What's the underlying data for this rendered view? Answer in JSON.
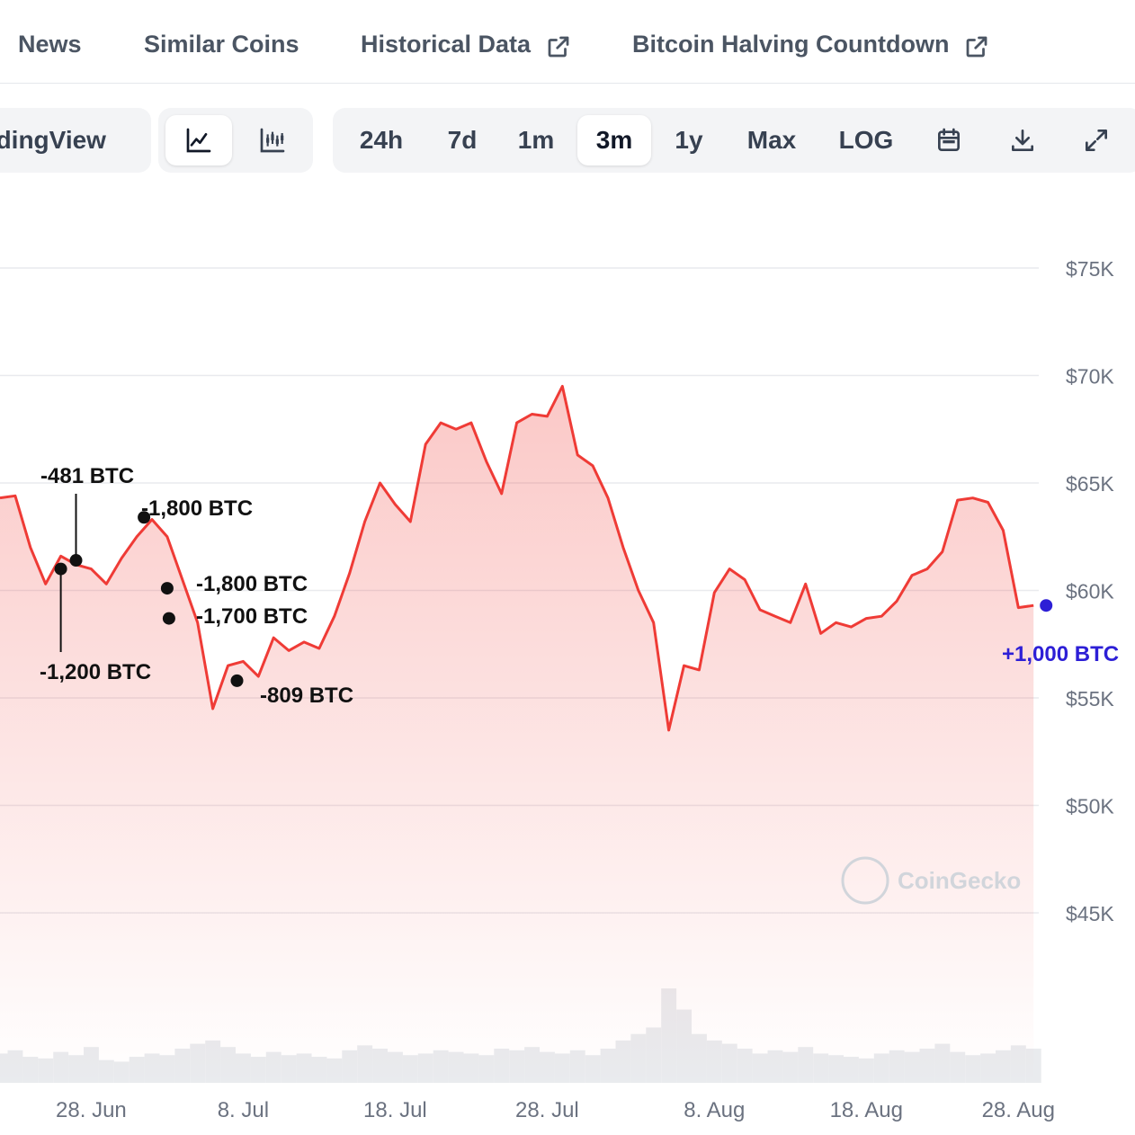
{
  "nav": {
    "items": [
      {
        "label": "News",
        "external": false
      },
      {
        "label": "Similar Coins",
        "external": false
      },
      {
        "label": "Historical Data",
        "external": true
      },
      {
        "label": "Bitcoin Halving Countdown",
        "external": true
      }
    ]
  },
  "toolbar": {
    "tradingview_label": "adingView",
    "chart_types": [
      {
        "icon": "line-chart-icon",
        "active": true
      },
      {
        "icon": "candlestick-chart-icon",
        "active": false
      }
    ],
    "ranges": [
      "24h",
      "7d",
      "1m",
      "3m",
      "1y",
      "Max",
      "LOG"
    ],
    "active_range": "3m",
    "tools": [
      "calendar-icon",
      "download-icon",
      "fullscreen-icon"
    ]
  },
  "watermark": "CoinGecko",
  "colors": {
    "line": "#ef3b36",
    "marker": "#111111",
    "highlight_marker": "#2d1fd6",
    "volume": "#e5e7eb"
  },
  "chart_data": {
    "type": "line",
    "title": "",
    "xlabel": "",
    "ylabel": "",
    "x_ticks": [
      "28. Jun",
      "8. Jul",
      "18. Jul",
      "28. Jul",
      "8. Aug",
      "18. Aug",
      "28. Aug"
    ],
    "y_ticks": [
      "$45K",
      "$50K",
      "$55K",
      "$60K",
      "$65K",
      "$70K",
      "$75K"
    ],
    "ylim": [
      45000,
      75000
    ],
    "grid": true,
    "series": [
      {
        "x": [
          "2024-06-22",
          "2024-06-23",
          "2024-06-24",
          "2024-06-25",
          "2024-06-26",
          "2024-06-27",
          "2024-06-28",
          "2024-06-29",
          "2024-06-30",
          "2024-07-01",
          "2024-07-02",
          "2024-07-03",
          "2024-07-04",
          "2024-07-05",
          "2024-07-06",
          "2024-07-07",
          "2024-07-08",
          "2024-07-09",
          "2024-07-10",
          "2024-07-11",
          "2024-07-12",
          "2024-07-13",
          "2024-07-14",
          "2024-07-15",
          "2024-07-16",
          "2024-07-17",
          "2024-07-18",
          "2024-07-19",
          "2024-07-20",
          "2024-07-21",
          "2024-07-22",
          "2024-07-23",
          "2024-07-24",
          "2024-07-25",
          "2024-07-26",
          "2024-07-27",
          "2024-07-28",
          "2024-07-29",
          "2024-07-30",
          "2024-07-31",
          "2024-08-01",
          "2024-08-02",
          "2024-08-03",
          "2024-08-04",
          "2024-08-05",
          "2024-08-06",
          "2024-08-07",
          "2024-08-08",
          "2024-08-09",
          "2024-08-10",
          "2024-08-11",
          "2024-08-12",
          "2024-08-13",
          "2024-08-14",
          "2024-08-15",
          "2024-08-16",
          "2024-08-17",
          "2024-08-18",
          "2024-08-19",
          "2024-08-20",
          "2024-08-21",
          "2024-08-22",
          "2024-08-23",
          "2024-08-24",
          "2024-08-25",
          "2024-08-26",
          "2024-08-27",
          "2024-08-28",
          "2024-08-29"
        ],
        "values": [
          64300,
          64400,
          62000,
          60300,
          61600,
          61200,
          61000,
          60300,
          61500,
          62500,
          63300,
          62500,
          60500,
          58500,
          54500,
          56500,
          56700,
          56000,
          57800,
          57200,
          57600,
          57300,
          58800,
          60800,
          63200,
          65000,
          64000,
          63200,
          66800,
          67800,
          67500,
          67800,
          66000,
          64500,
          67800,
          68200,
          68100,
          69500,
          66300,
          65800,
          64300,
          62000,
          60000,
          58500,
          53500,
          56500,
          56300,
          59900,
          61000,
          60500,
          59100,
          58800,
          58500,
          60300,
          58000,
          58500,
          58300,
          58700,
          58800,
          59500,
          60700,
          61000,
          61800,
          64200,
          64300,
          64100,
          62800,
          59200,
          59300
        ],
        "label_points": [
          {
            "x": "2024-06-26",
            "value": 61000
          },
          {
            "x": "2024-06-27",
            "value": 61400
          },
          {
            "x": "2024-07-01",
            "value": 63400
          },
          {
            "x": "2024-07-03",
            "value": 60100
          },
          {
            "x": "2024-07-03",
            "value": 58700
          },
          {
            "x": "2024-07-07",
            "value": 55800
          },
          {
            "x": "2024-08-29",
            "value": 59300
          }
        ],
        "volume": [
          18,
          20,
          16,
          15,
          19,
          17,
          22,
          14,
          13,
          16,
          18,
          17,
          21,
          24,
          26,
          22,
          18,
          16,
          19,
          17,
          18,
          16,
          15,
          20,
          23,
          21,
          19,
          17,
          18,
          20,
          19,
          18,
          17,
          21,
          20,
          22,
          19,
          18,
          20,
          17,
          21,
          26,
          30,
          34,
          58,
          45,
          30,
          26,
          24,
          21,
          18,
          20,
          19,
          22,
          18,
          17,
          16,
          15,
          18,
          20,
          19,
          21,
          24,
          19,
          17,
          18,
          20,
          23,
          21
        ]
      }
    ],
    "annotations": [
      {
        "text": "-481 BTC"
      },
      {
        "text": "-1,800 BTC"
      },
      {
        "text": "-1,800 BTC"
      },
      {
        "text": "-1,700 BTC"
      },
      {
        "text": "-1,200 BTC"
      },
      {
        "text": "-809 BTC"
      },
      {
        "text": "+1,000 BTC"
      }
    ]
  }
}
